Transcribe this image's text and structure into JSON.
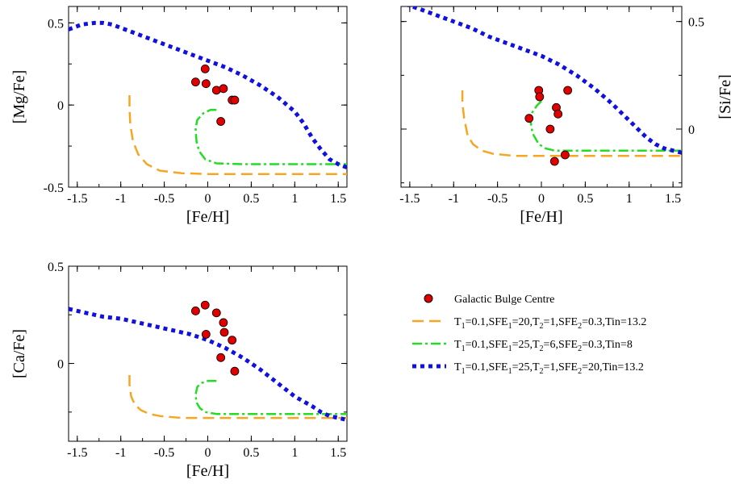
{
  "colors": {
    "bulge": "#e00000",
    "model1": "#f5a623",
    "model2": "#22dd22",
    "model3": "#1010e0"
  },
  "legend": {
    "bulge": "Galactic Bulge Centre",
    "m1": {
      "a": "T",
      "as": "1",
      "b": "=0.1,SFE",
      "bs": "1",
      "c": "=20,T",
      "cs": "2",
      "d": "=1,SFE",
      "ds": "2",
      "e": "=0.3,Tin=13.2"
    },
    "m2": {
      "a": "T",
      "as": "1",
      "b": "=0.1,SFE",
      "bs": "1",
      "c": "=25,T",
      "cs": "2",
      "d": "=6,SFE",
      "ds": "2",
      "e": "=0.3,Tin=8"
    },
    "m3": {
      "a": "T",
      "as": "1",
      "b": "=0.1,SFE",
      "bs": "1",
      "c": "=25,T",
      "cs": "2",
      "d": "=1,SFE",
      "ds": "2",
      "e": "=20,Tin=13.2"
    }
  },
  "chart_data": [
    {
      "type": "line",
      "xlabel": "[Fe/H]",
      "ylabel": "[Mg/Fe]",
      "ylabel_side": "left",
      "xlim": [
        -1.6,
        1.6
      ],
      "ylim": [
        -0.5,
        0.6
      ],
      "xticks": [
        "-1.5",
        "-1",
        "-0.5",
        "0",
        "0.5",
        "1",
        "1.5"
      ],
      "yticks": [
        "-0.5",
        "0",
        "0.5"
      ],
      "scatter": {
        "name": "Galactic Bulge Centre",
        "x": [
          -0.14,
          -0.03,
          -0.02,
          0.1,
          0.18,
          0.28,
          0.31,
          0.15
        ],
        "y": [
          0.14,
          0.22,
          0.13,
          0.09,
          0.1,
          0.03,
          0.03,
          -0.1
        ]
      },
      "series": [
        {
          "name": "T1=0.1,SFE1=20,T2=1,SFE2=0.3,Tin=13.2",
          "style": "dashed",
          "x": [
            -0.9,
            -0.9,
            -0.89,
            -0.86,
            -0.8,
            -0.7,
            -0.55,
            -0.3,
            0.0,
            0.5,
            1.0,
            1.6
          ],
          "y": [
            0.06,
            -0.02,
            -0.12,
            -0.22,
            -0.3,
            -0.36,
            -0.4,
            -0.415,
            -0.42,
            -0.42,
            -0.42,
            -0.42
          ]
        },
        {
          "name": "T1=0.1,SFE1=25,T2=6,SFE2=0.3,Tin=8",
          "style": "dashdot",
          "x": [
            0.1,
            0.03,
            -0.05,
            -0.12,
            -0.14,
            -0.13,
            -0.1,
            -0.03,
            0.1,
            0.4,
            0.8,
            1.2,
            1.5,
            1.6
          ],
          "y": [
            -0.03,
            -0.03,
            -0.05,
            -0.09,
            -0.14,
            -0.22,
            -0.28,
            -0.33,
            -0.355,
            -0.36,
            -0.36,
            -0.36,
            -0.36,
            -0.36
          ]
        },
        {
          "name": "T1=0.1,SFE1=25,T2=1,SFE2=20,Tin=13.2",
          "style": "dotted",
          "x": [
            -1.6,
            -1.45,
            -1.3,
            -1.2,
            -1.1,
            -1.0,
            -0.8,
            -0.6,
            -0.4,
            -0.2,
            0.0,
            0.2,
            0.4,
            0.6,
            0.8,
            1.0,
            1.1,
            1.2,
            1.3,
            1.4,
            1.5,
            1.6
          ],
          "y": [
            0.46,
            0.49,
            0.5,
            0.5,
            0.49,
            0.47,
            0.43,
            0.39,
            0.35,
            0.31,
            0.27,
            0.23,
            0.18,
            0.12,
            0.05,
            -0.04,
            -0.11,
            -0.2,
            -0.27,
            -0.33,
            -0.36,
            -0.38
          ]
        }
      ]
    },
    {
      "type": "line",
      "xlabel": "[Fe/H]",
      "ylabel": "[Si/Fe]",
      "ylabel_side": "right",
      "xlim": [
        -1.6,
        1.6
      ],
      "ylim": [
        -0.27,
        0.57
      ],
      "xticks": [
        "-1.5",
        "-1",
        "-0.5",
        "0",
        "0.5",
        "1",
        "1.5"
      ],
      "yticks": [
        "0",
        "0.5"
      ],
      "scatter": {
        "name": "Galactic Bulge Centre",
        "x": [
          -0.14,
          -0.03,
          -0.02,
          0.1,
          0.17,
          0.19,
          0.27,
          0.3,
          0.15
        ],
        "y": [
          0.05,
          0.18,
          0.15,
          0.0,
          0.1,
          0.07,
          -0.12,
          0.18,
          -0.15
        ]
      },
      "series": [
        {
          "name": "T1=0.1,SFE1=20,T2=1,SFE2=0.3,Tin=13.2",
          "style": "dashed",
          "x": [
            -0.9,
            -0.9,
            -0.88,
            -0.84,
            -0.78,
            -0.68,
            -0.55,
            -0.3,
            0.0,
            0.5,
            1.0,
            1.6
          ],
          "y": [
            0.18,
            0.12,
            0.05,
            -0.03,
            -0.07,
            -0.1,
            -0.115,
            -0.125,
            -0.125,
            -0.125,
            -0.125,
            -0.125
          ]
        },
        {
          "name": "T1=0.1,SFE1=25,T2=6,SFE2=0.3,Tin=8",
          "style": "dashdot",
          "x": [
            0.0,
            -0.05,
            -0.1,
            -0.13,
            -0.1,
            -0.03,
            0.05,
            0.15,
            0.4,
            0.8,
            1.2,
            1.6
          ],
          "y": [
            0.13,
            0.11,
            0.08,
            0.05,
            -0.02,
            -0.07,
            -0.09,
            -0.1,
            -0.1,
            -0.1,
            -0.1,
            -0.1
          ]
        },
        {
          "name": "T1=0.1,SFE1=25,T2=1,SFE2=20,Tin=13.2",
          "style": "dotted",
          "x": [
            -1.55,
            -1.4,
            -1.2,
            -1.0,
            -0.8,
            -0.6,
            -0.4,
            -0.2,
            0.0,
            0.2,
            0.4,
            0.6,
            0.8,
            1.0,
            1.1,
            1.2,
            1.3,
            1.4,
            1.5,
            1.6
          ],
          "y": [
            0.58,
            0.56,
            0.53,
            0.5,
            0.47,
            0.43,
            0.4,
            0.37,
            0.34,
            0.3,
            0.25,
            0.19,
            0.12,
            0.04,
            0.0,
            -0.04,
            -0.07,
            -0.09,
            -0.1,
            -0.11
          ]
        }
      ]
    },
    {
      "type": "line",
      "xlabel": "[Fe/H]",
      "ylabel": "[Ca/Fe]",
      "ylabel_side": "left",
      "xlim": [
        -1.6,
        1.6
      ],
      "ylim": [
        -0.4,
        0.5
      ],
      "xticks": [
        "-1.5",
        "-1",
        "-0.5",
        "0",
        "0.5",
        "1",
        "1.5"
      ],
      "yticks": [
        "0",
        "0.5"
      ],
      "scatter": {
        "name": "Galactic Bulge Centre",
        "x": [
          -0.14,
          -0.03,
          -0.02,
          0.1,
          0.15,
          0.18,
          0.19,
          0.28,
          0.31
        ],
        "y": [
          0.27,
          0.3,
          0.15,
          0.26,
          0.03,
          0.21,
          0.16,
          0.12,
          -0.04
        ]
      },
      "series": [
        {
          "name": "T1=0.1,SFE1=20,T2=1,SFE2=0.3,Tin=13.2",
          "style": "dashed",
          "x": [
            -0.9,
            -0.9,
            -0.88,
            -0.84,
            -0.77,
            -0.67,
            -0.55,
            -0.3,
            0.0,
            0.5,
            1.0,
            1.6
          ],
          "y": [
            -0.06,
            -0.11,
            -0.17,
            -0.21,
            -0.24,
            -0.26,
            -0.27,
            -0.28,
            -0.28,
            -0.28,
            -0.28,
            -0.28
          ]
        },
        {
          "name": "T1=0.1,SFE1=25,T2=6,SFE2=0.3,Tin=8",
          "style": "dashdot",
          "x": [
            0.1,
            0.0,
            -0.07,
            -0.12,
            -0.14,
            -0.13,
            -0.09,
            -0.03,
            0.1,
            0.4,
            0.8,
            1.2,
            1.6
          ],
          "y": [
            -0.09,
            -0.09,
            -0.1,
            -0.12,
            -0.16,
            -0.2,
            -0.23,
            -0.25,
            -0.26,
            -0.26,
            -0.26,
            -0.26,
            -0.26
          ]
        },
        {
          "name": "T1=0.1,SFE1=25,T2=1,SFE2=20,Tin=13.2",
          "style": "dotted",
          "x": [
            -1.6,
            -1.4,
            -1.2,
            -1.0,
            -0.8,
            -0.6,
            -0.4,
            -0.2,
            0.0,
            0.2,
            0.4,
            0.6,
            0.8,
            1.0,
            1.2,
            1.3,
            1.4,
            1.5,
            1.6
          ],
          "y": [
            0.28,
            0.26,
            0.24,
            0.23,
            0.21,
            0.19,
            0.17,
            0.15,
            0.12,
            0.08,
            0.03,
            -0.03,
            -0.1,
            -0.17,
            -0.22,
            -0.25,
            -0.27,
            -0.28,
            -0.29
          ]
        }
      ]
    }
  ]
}
